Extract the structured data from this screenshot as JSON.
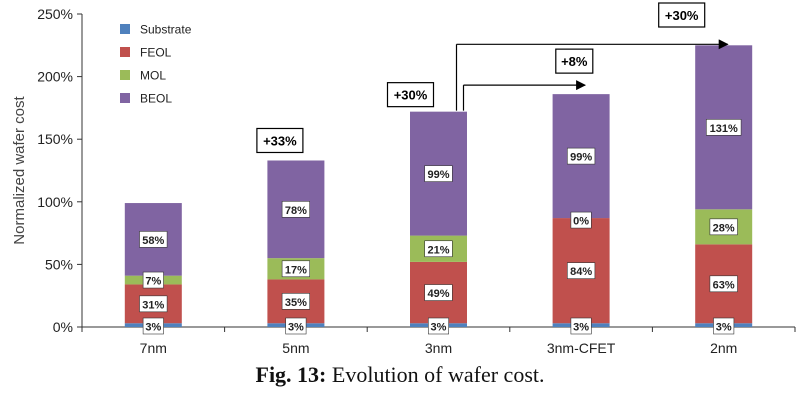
{
  "chart_data": {
    "type": "bar",
    "stacked": true,
    "title": "",
    "xlabel": "",
    "ylabel": "Normalized wafer cost",
    "ylim": [
      0,
      250
    ],
    "yticks": [
      "0%",
      "50%",
      "100%",
      "150%",
      "200%",
      "250%"
    ],
    "y_tick_values": [
      0,
      50,
      100,
      150,
      200,
      250
    ],
    "categories": [
      "7nm",
      "5nm",
      "3nm",
      "3nm-CFET",
      "2nm"
    ],
    "series": [
      {
        "name": "Substrate",
        "color": "#4f81bd",
        "values": [
          3,
          3,
          3,
          3,
          3
        ],
        "labels": [
          "3%",
          "3%",
          "3%",
          "3%",
          "3%"
        ]
      },
      {
        "name": "FEOL",
        "color": "#c0504d",
        "values": [
          31,
          35,
          49,
          84,
          63
        ],
        "labels": [
          "31%",
          "35%",
          "49%",
          "84%",
          "63%"
        ]
      },
      {
        "name": "MOL",
        "color": "#9bbb59",
        "values": [
          7,
          17,
          21,
          0,
          28
        ],
        "labels": [
          "7%",
          "17%",
          "21%",
          "0%",
          "28%"
        ]
      },
      {
        "name": "BEOL",
        "color": "#8064a2",
        "values": [
          58,
          78,
          99,
          99,
          131
        ],
        "labels": [
          "58%",
          "78%",
          "99%",
          "99%",
          "131%"
        ]
      }
    ],
    "legend_position": "top-left",
    "grid": false,
    "annotations": [
      {
        "text": "+33%",
        "target": "5nm"
      },
      {
        "text": "+30%",
        "target": "3nm"
      },
      {
        "text": "+8%",
        "from": "3nm",
        "to": "3nm-CFET"
      },
      {
        "text": "+30%",
        "from": "3nm",
        "to": "2nm"
      }
    ]
  },
  "caption": {
    "prefix": "Fig. 13:",
    "text": " Evolution of wafer cost."
  }
}
